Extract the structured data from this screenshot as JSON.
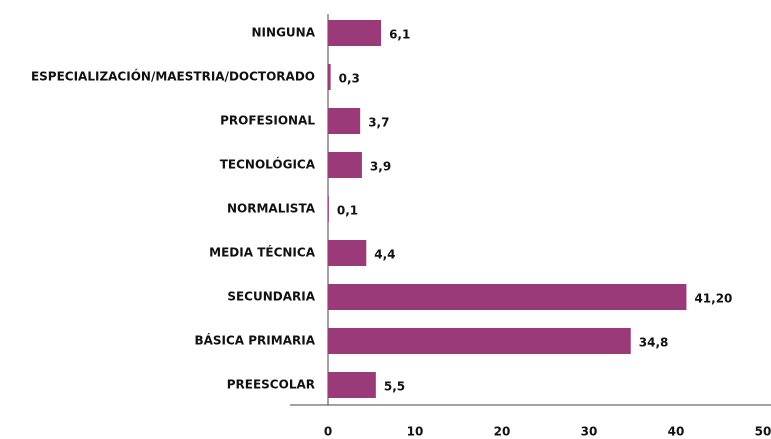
{
  "chart_data": {
    "type": "bar",
    "orientation": "horizontal",
    "categories": [
      "NINGUNA",
      "ESPECIALIZACIÓN/MAESTRIA/DOCTORADO",
      "PROFESIONAL",
      "TECNOLÓGICA",
      "NORMALISTA",
      "MEDIA TÉCNICA",
      "SECUNDARIA",
      "BÁSICA PRIMARIA",
      "PREESCOLAR"
    ],
    "values": [
      6.1,
      0.3,
      3.7,
      3.9,
      0.1,
      4.4,
      41.2,
      34.8,
      5.5
    ],
    "value_labels": [
      "6,1",
      "0,3",
      "3,7",
      "3,9",
      "0,1",
      "4,4",
      "41,20",
      "34,8",
      "5,5"
    ],
    "color": "#9b3a78",
    "xlim": [
      0,
      50
    ],
    "xticks": [
      0,
      10,
      20,
      30,
      40,
      50
    ]
  }
}
